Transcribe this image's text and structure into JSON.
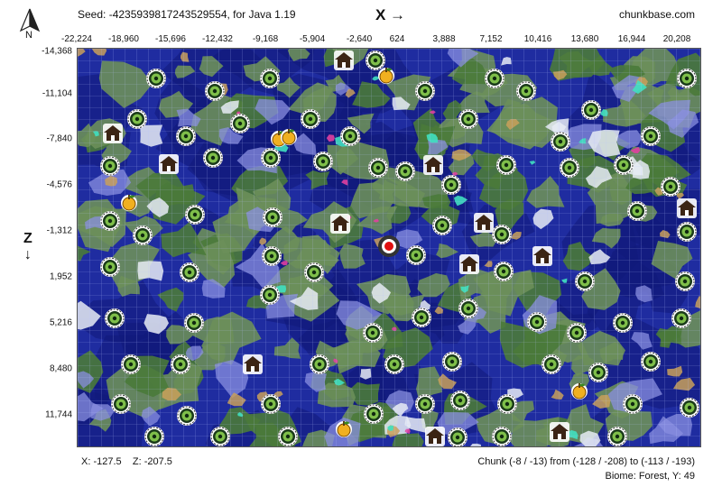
{
  "header": {
    "seed_text": "Seed: -4235939817243529554, for Java 1.19",
    "brand": "chunkbase.com",
    "x_axis_label": "X →",
    "z_axis_label": "Z",
    "z_axis_arrow": "↓",
    "compass_label": "N"
  },
  "x_ticks": [
    "-22,224",
    "-18,960",
    "-15,696",
    "-12,432",
    "-9,168",
    "-5,904",
    "-2,640",
    "624",
    "3,888",
    "7,152",
    "10,416",
    "13,680",
    "16,944",
    "20,208"
  ],
  "z_ticks": [
    "-14,368",
    "-11,104",
    "-7,840",
    "-4,576",
    "-1,312",
    "1,952",
    "5,216",
    "8,480",
    "11,744"
  ],
  "footer": {
    "coords_x": "X: -127.5",
    "coords_z": "Z: -207.5",
    "chunk_text": "Chunk (-8 / -13) from (-128 / -208) to (-113 / -193)",
    "biome_text": "Biome: Forest, Y: 49"
  },
  "colors": {
    "ocean": "#1f2ca0",
    "deep_ocean": "#111a7a",
    "land": "#6b8f5a",
    "forest": "#4a7a3a",
    "sand": "#c9a05a",
    "snow": "#e8ecf5",
    "grid": "#9aa8ff",
    "eye_outer": "#1a3a1a",
    "eye_inner": "#7fbf4a",
    "village": "#3b2414",
    "apple": "#f0b020",
    "spawn": "#e01010"
  },
  "map_icons": {
    "ender_eyes": [
      [
        172,
        86
      ],
      [
        237,
        100
      ],
      [
        298,
        86
      ],
      [
        415,
        66
      ],
      [
        470,
        100
      ],
      [
        547,
        86
      ],
      [
        582,
        100
      ],
      [
        654,
        121
      ],
      [
        760,
        86
      ],
      [
        151,
        131
      ],
      [
        205,
        150
      ],
      [
        265,
        136
      ],
      [
        343,
        131
      ],
      [
        387,
        150
      ],
      [
        518,
        131
      ],
      [
        620,
        156
      ],
      [
        720,
        150
      ],
      [
        121,
        183
      ],
      [
        235,
        174
      ],
      [
        299,
        174
      ],
      [
        357,
        178
      ],
      [
        418,
        185
      ],
      [
        448,
        189
      ],
      [
        499,
        204
      ],
      [
        560,
        182
      ],
      [
        630,
        185
      ],
      [
        690,
        182
      ],
      [
        742,
        206
      ],
      [
        121,
        244
      ],
      [
        157,
        260
      ],
      [
        215,
        237
      ],
      [
        301,
        240
      ],
      [
        489,
        249
      ],
      [
        555,
        259
      ],
      [
        705,
        233
      ],
      [
        760,
        256
      ],
      [
        121,
        295
      ],
      [
        209,
        301
      ],
      [
        300,
        283
      ],
      [
        347,
        301
      ],
      [
        460,
        282
      ],
      [
        557,
        300
      ],
      [
        647,
        311
      ],
      [
        758,
        311
      ],
      [
        126,
        352
      ],
      [
        214,
        357
      ],
      [
        298,
        326
      ],
      [
        412,
        368
      ],
      [
        466,
        351
      ],
      [
        518,
        341
      ],
      [
        594,
        356
      ],
      [
        638,
        368
      ],
      [
        689,
        357
      ],
      [
        754,
        352
      ],
      [
        144,
        403
      ],
      [
        199,
        403
      ],
      [
        353,
        403
      ],
      [
        436,
        403
      ],
      [
        500,
        400
      ],
      [
        610,
        403
      ],
      [
        662,
        412
      ],
      [
        720,
        400
      ],
      [
        133,
        447
      ],
      [
        206,
        460
      ],
      [
        299,
        447
      ],
      [
        413,
        458
      ],
      [
        470,
        447
      ],
      [
        509,
        443
      ],
      [
        561,
        447
      ],
      [
        700,
        447
      ],
      [
        763,
        451
      ],
      [
        170,
        483
      ],
      [
        243,
        483
      ],
      [
        318,
        483
      ],
      [
        555,
        483
      ],
      [
        683,
        483
      ],
      [
        506,
        484
      ]
    ],
    "villages": [
      [
        380,
        66
      ],
      [
        124,
        147
      ],
      [
        186,
        181
      ],
      [
        479,
        182
      ],
      [
        376,
        247
      ],
      [
        535,
        246
      ],
      [
        760,
        230
      ],
      [
        600,
        283
      ],
      [
        519,
        292
      ],
      [
        279,
        403
      ],
      [
        481,
        483
      ],
      [
        619,
        478
      ]
    ],
    "apples": [
      [
        427,
        82
      ],
      [
        308,
        152
      ],
      [
        319,
        150
      ],
      [
        142,
        223
      ],
      [
        641,
        432
      ],
      [
        380,
        474
      ]
    ],
    "spawn": [
      430,
      272
    ]
  }
}
